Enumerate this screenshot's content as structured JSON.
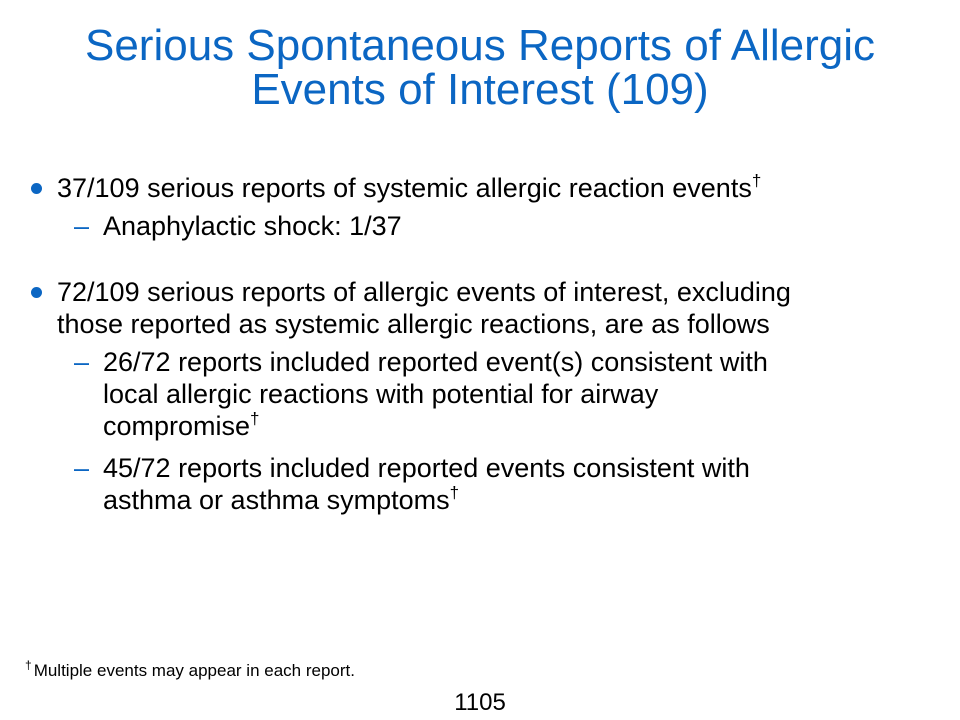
{
  "title": {
    "line1": "Serious Spontaneous Reports of Allergic",
    "line2": "Events of Interest (109)"
  },
  "dagger": "†",
  "bullets": [
    {
      "lines": [
        "37/109 serious reports of systemic allergic reaction events"
      ],
      "subitems": [
        {
          "lines": [
            "Anaphylactic shock: 1/37"
          ]
        }
      ]
    },
    {
      "lines": [
        "72/109 serious reports of allergic events of interest, excluding",
        "those reported as systemic allergic reactions, are as follows"
      ],
      "subitems": [
        {
          "lines": [
            "26/72 reports included reported event(s) consistent with",
            "local allergic reactions with potential for airway",
            "compromise"
          ]
        },
        {
          "lines": [
            "45/72 reports included reported events consistent with",
            "asthma or asthma symptoms"
          ]
        }
      ]
    }
  ],
  "sub_marker": "–",
  "footnote": {
    "marker": "†",
    "text": "Multiple events may appear in each report."
  },
  "page_number": "1105",
  "colors": {
    "accent": "#0b66c3",
    "text": "#000000"
  }
}
